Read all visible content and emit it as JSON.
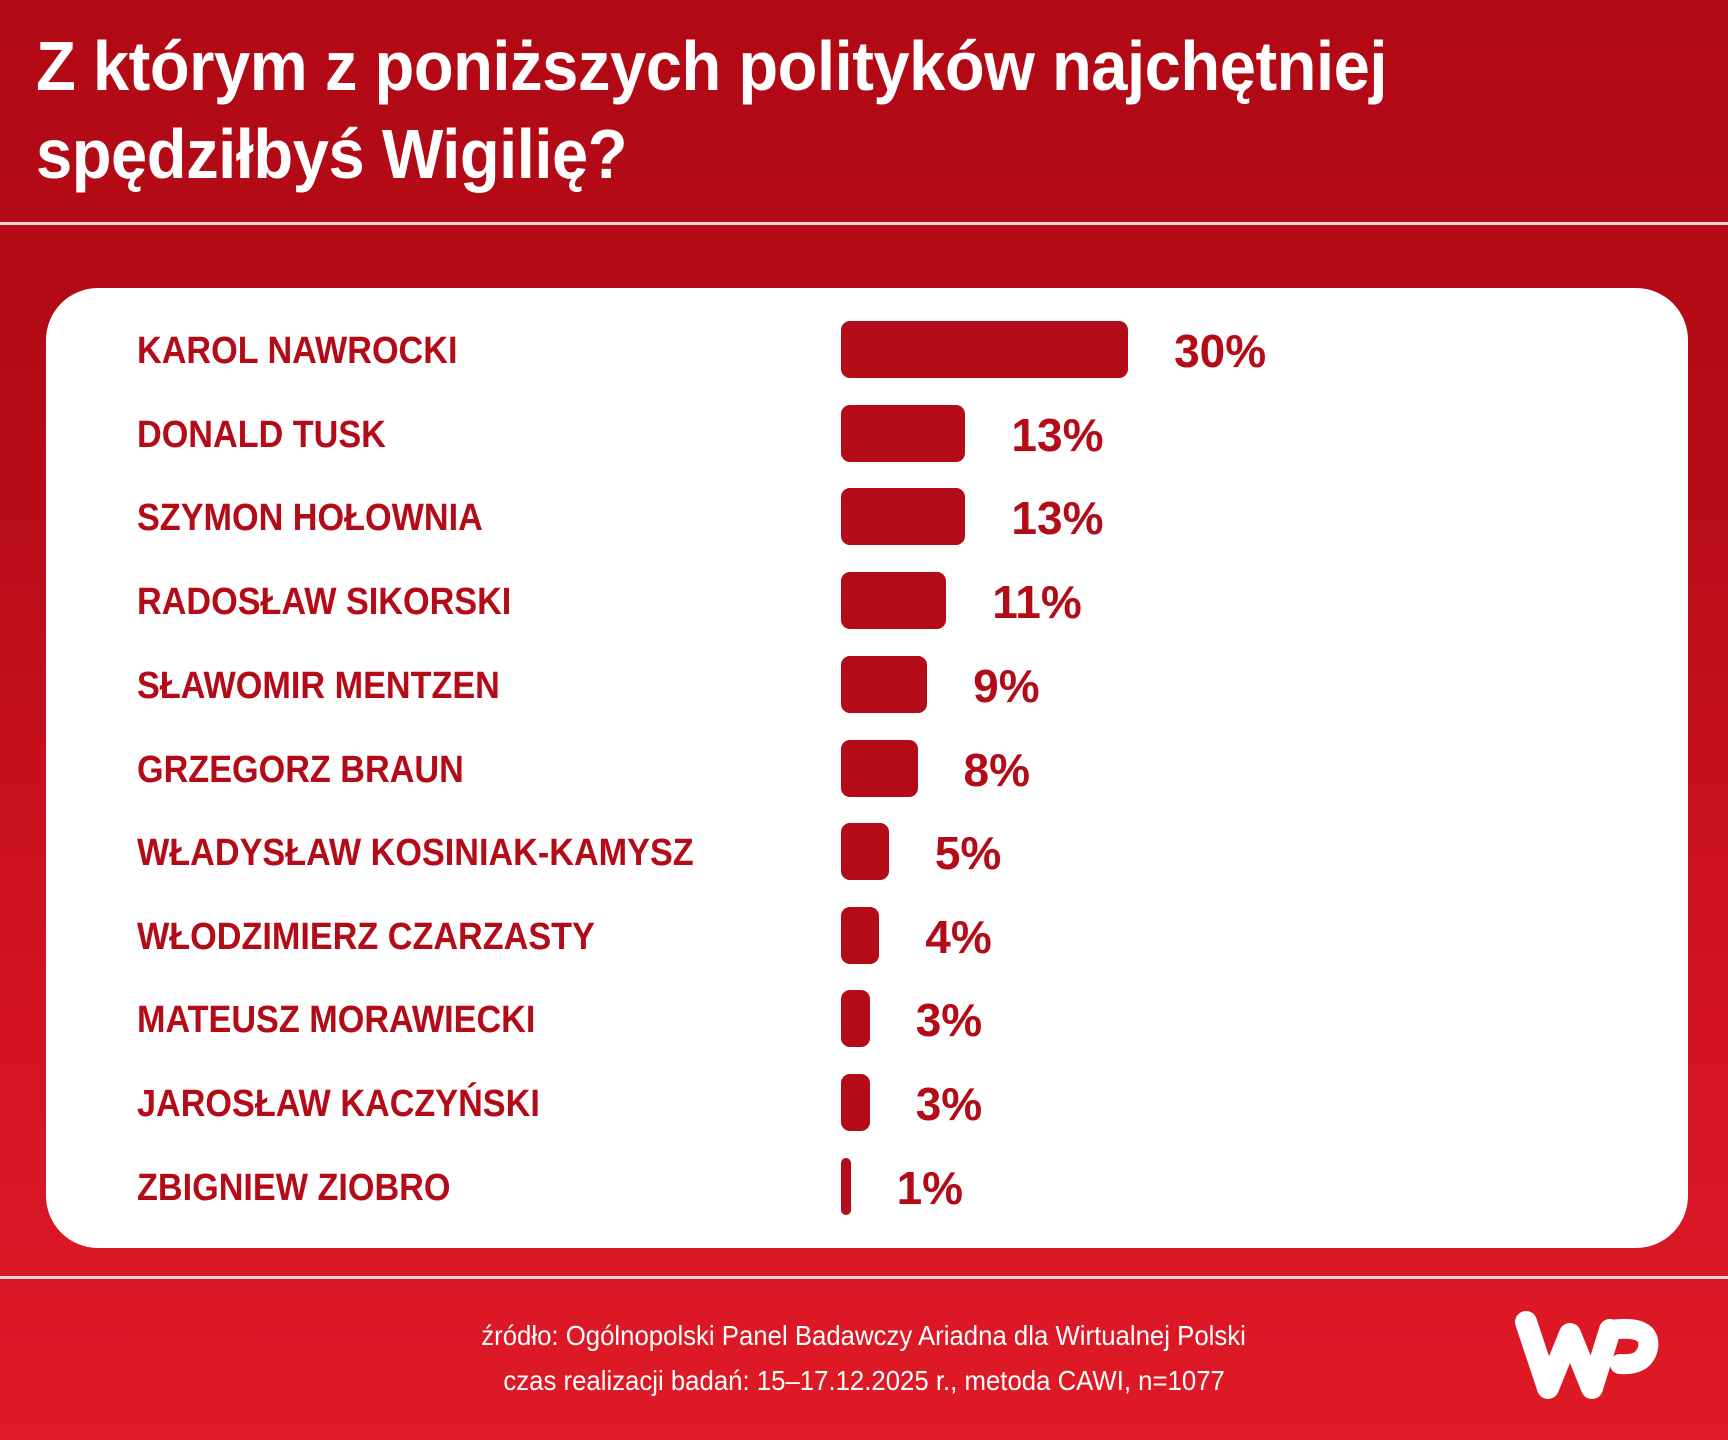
{
  "title": {
    "line1": "Z którym z poniższych polityków najchętniej",
    "line2": "spędziłbyś Wigilię?"
  },
  "colors": {
    "header_bg": "#b10915",
    "footer_bg": "#e01a27",
    "bar": "#b30b17",
    "label": "#b30b17",
    "card": "#ffffff"
  },
  "chart_data": {
    "type": "bar",
    "orientation": "horizontal",
    "title": "Z którym z poniższych polityków najchętniej spędziłbyś Wigilię?",
    "xlabel": "",
    "ylabel": "",
    "unit": "%",
    "grid": false,
    "legend": null,
    "categories": [
      "KAROL NAWROCKI",
      "DONALD TUSK",
      "SZYMON HOŁOWNIA",
      "RADOSŁAW SIKORSKI",
      "SŁAWOMIR MENTZEN",
      "GRZEGORZ BRAUN",
      "WŁADYSŁAW KOSINIAK-KAMYSZ",
      "WŁODZIMIERZ CZARZASTY",
      "MATEUSZ MORAWIECKI",
      "JAROSŁAW KACZYŃSKI",
      "ZBIGNIEW ZIOBRO"
    ],
    "values": [
      30,
      13,
      13,
      11,
      9,
      8,
      5,
      4,
      3,
      3,
      1
    ],
    "labels": [
      "30%",
      "13%",
      "13%",
      "11%",
      "9%",
      "8%",
      "5%",
      "4%",
      "3%",
      "3%",
      "1%"
    ]
  },
  "footer": {
    "source": "źródło: Ogólnopolski Panel Badawczy Ariadna dla Wirtualnej Polski",
    "method": "czas realizacji badań: 15–17.12.2025 r., metoda CAWI, n=1077",
    "logo": "wp-logo"
  }
}
